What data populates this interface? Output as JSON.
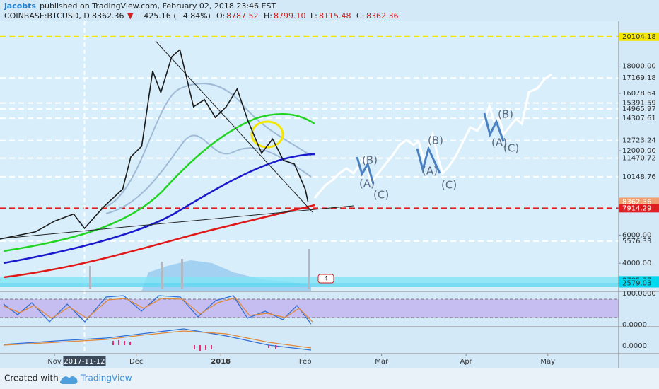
{
  "header": {
    "author": "jacobts",
    "published": "published on TradingView.com, February 02, 2018 23:46 EST",
    "symbol": "COINBASE:BTCUSD, D",
    "last": "8362.36",
    "arrow": "▼",
    "change": "−425.16 (−4.84%)",
    "open_label": "O:",
    "open": "8787.52",
    "high_label": "H:",
    "high": "8799.10",
    "low_label": "L:",
    "low": "8115.48",
    "close_label": "C:",
    "close": "8362.36"
  },
  "chart_data": {
    "type": "line",
    "color": "#1a1a1a",
    "x": [
      "2017-10-12",
      "2017-10-25",
      "2017-11-01",
      "2017-11-08",
      "2017-11-12",
      "2017-11-19",
      "2017-11-26",
      "2017-11-29",
      "2017-12-03",
      "2017-12-07",
      "2017-12-10",
      "2017-12-14",
      "2017-12-17",
      "2017-12-22",
      "2017-12-26",
      "2017-12-30",
      "2018-01-03",
      "2018-01-07",
      "2018-01-11",
      "2018-01-16",
      "2018-01-20",
      "2018-01-24",
      "2018-01-28",
      "2018-02-01",
      "2018-02-02"
    ],
    "values": [
      5720,
      6230,
      6990,
      7500,
      6480,
      8000,
      9270,
      11560,
      12320,
      17660,
      16130,
      18670,
      19180,
      15120,
      15630,
      14360,
      15120,
      16390,
      14110,
      11820,
      12830,
      11310,
      11050,
      9270,
      8362.36
    ],
    "xlim": [
      "2017-10-12",
      "2018-05-27"
    ],
    "xticks": [
      {
        "value": "2017-11-01",
        "label": "Nov"
      },
      {
        "value": "2017-12-01",
        "label": "Dec"
      },
      {
        "value": "2018-01-01",
        "label": "2018"
      },
      {
        "value": "2018-02-01",
        "label": "Feb"
      },
      {
        "value": "2018-03-01",
        "label": "Mar"
      },
      {
        "value": "2018-04-01",
        "label": "Apr"
      },
      {
        "value": "2018-05-01",
        "label": "May"
      }
    ],
    "crosshair": {
      "value": "2017-11-12",
      "label": "2017-11-12"
    },
    "ylim": [
      2000,
      21200
    ],
    "yticks": [
      {
        "value": 20104.18,
        "label": "20104.18",
        "line": "#f5e600",
        "bg": "#f5e600"
      },
      {
        "value": 18000,
        "label": "18000.00"
      },
      {
        "value": 17169.18,
        "label": "17169.18",
        "line": "#ffffff"
      },
      {
        "value": 16078.64,
        "label": "16078.64"
      },
      {
        "value": 15391.59,
        "label": "15391.59",
        "line": "#ffffff"
      },
      {
        "value": 14965.97,
        "label": "14965.97",
        "line": "#ffffff"
      },
      {
        "value": 14307.61,
        "label": "14307.61",
        "line": "#ffffff"
      },
      {
        "value": 12723.24,
        "label": "12723.24",
        "line": "#ffffff"
      },
      {
        "value": 12000,
        "label": "12000.00"
      },
      {
        "value": 11470.72,
        "label": "11470.72",
        "line": "#ffffff"
      },
      {
        "value": 10148.76,
        "label": "10148.76",
        "line": "#ffffff"
      },
      {
        "value": 8362.36,
        "label": "8362.36",
        "bg": "#f0a070"
      },
      {
        "value": 7914.29,
        "label": "7914.29",
        "line": "#e02020",
        "bg": "#e02020"
      },
      {
        "value": 6000,
        "label": "6000.00"
      },
      {
        "value": 5576.33,
        "label": "5576.33",
        "line": "#ffffff"
      },
      {
        "value": 4000,
        "label": "4000.00"
      },
      {
        "value": 2785.37,
        "label": "2785.37",
        "bg": "#00d8f0"
      },
      {
        "value": 2579.03,
        "label": "2579.03",
        "bg": "#00d8f0"
      }
    ],
    "waves": [
      "(A)",
      "(B)",
      "(C)",
      "(A)",
      "(B)",
      "(C)",
      "(A)",
      "(B)",
      "(C)"
    ]
  },
  "indicators": {
    "stoch_top": "100.0000",
    "stoch_bottom": "0.0000",
    "macd_zero": "0.0000",
    "badge": "4"
  },
  "footer": {
    "created": "Created with",
    "brand": "TradingView"
  }
}
